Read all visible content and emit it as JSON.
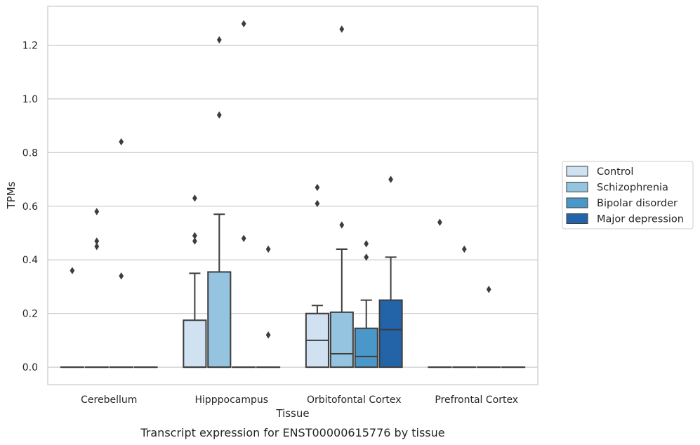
{
  "caption": "Transcript expression for ENST00000615776 by tissue",
  "chart_data": {
    "type": "box",
    "title": "",
    "xlabel": "Tissue",
    "ylabel": "TPMs",
    "ylim": [
      -0.065,
      1.345
    ],
    "yticks": [
      0.0,
      0.2,
      0.4,
      0.6,
      0.8,
      1.0,
      1.2
    ],
    "ytick_labels": [
      "0.0",
      "0.2",
      "0.4",
      "0.6",
      "0.8",
      "1.0",
      "1.2"
    ],
    "grid": "horizontal",
    "legend_position": "right",
    "categories": [
      "Cerebellum",
      "Hipppocampus",
      "Orbitofontal Cortex",
      "Prefrontal Cortex"
    ],
    "series": [
      {
        "name": "Control",
        "color": "#d0e1f2",
        "boxes": [
          {
            "q1": 0,
            "median": 0,
            "q3": 0,
            "whisker_low": 0,
            "whisker_high": 0,
            "outliers": [
              0.36
            ]
          },
          {
            "q1": 0,
            "median": 0,
            "q3": 0.175,
            "whisker_low": 0,
            "whisker_high": 0.35,
            "outliers": [
              0.47,
              0.49,
              0.63
            ]
          },
          {
            "q1": 0,
            "median": 0.1,
            "q3": 0.2,
            "whisker_low": 0,
            "whisker_high": 0.23,
            "outliers": [
              0.61,
              0.67
            ]
          },
          {
            "q1": 0,
            "median": 0,
            "q3": 0,
            "whisker_low": 0,
            "whisker_high": 0,
            "outliers": [
              0.54
            ]
          }
        ]
      },
      {
        "name": "Schizophrenia",
        "color": "#94c4df",
        "boxes": [
          {
            "q1": 0,
            "median": 0,
            "q3": 0,
            "whisker_low": 0,
            "whisker_high": 0,
            "outliers": [
              0.45,
              0.47,
              0.58
            ]
          },
          {
            "q1": 0,
            "median": 0,
            "q3": 0.355,
            "whisker_low": 0,
            "whisker_high": 0.57,
            "outliers": [
              0.94,
              1.22
            ]
          },
          {
            "q1": 0,
            "median": 0.05,
            "q3": 0.205,
            "whisker_low": 0,
            "whisker_high": 0.44,
            "outliers": [
              0.53,
              1.26
            ]
          },
          {
            "q1": 0,
            "median": 0,
            "q3": 0,
            "whisker_low": 0,
            "whisker_high": 0,
            "outliers": [
              0.44
            ]
          }
        ]
      },
      {
        "name": "Bipolar disorder",
        "color": "#4a98c9",
        "boxes": [
          {
            "q1": 0,
            "median": 0,
            "q3": 0,
            "whisker_low": 0,
            "whisker_high": 0,
            "outliers": [
              0.34,
              0.84
            ]
          },
          {
            "q1": 0,
            "median": 0,
            "q3": 0,
            "whisker_low": 0,
            "whisker_high": 0,
            "outliers": [
              0.48,
              1.28
            ]
          },
          {
            "q1": 0,
            "median": 0.04,
            "q3": 0.145,
            "whisker_low": 0,
            "whisker_high": 0.25,
            "outliers": [
              0.41,
              0.46
            ]
          },
          {
            "q1": 0,
            "median": 0,
            "q3": 0,
            "whisker_low": 0,
            "whisker_high": 0,
            "outliers": [
              0.29
            ]
          }
        ]
      },
      {
        "name": "Major depression",
        "color": "#2363a8",
        "boxes": [
          {
            "q1": 0,
            "median": 0,
            "q3": 0,
            "whisker_low": 0,
            "whisker_high": 0,
            "outliers": []
          },
          {
            "q1": 0,
            "median": 0,
            "q3": 0,
            "whisker_low": 0,
            "whisker_high": 0,
            "outliers": [
              0.12,
              0.44
            ]
          },
          {
            "q1": 0,
            "median": 0.14,
            "q3": 0.25,
            "whisker_low": 0,
            "whisker_high": 0.41,
            "outliers": [
              0.7
            ]
          },
          {
            "q1": 0,
            "median": 0,
            "q3": 0,
            "whisker_low": 0,
            "whisker_high": 0,
            "outliers": []
          }
        ]
      }
    ]
  }
}
